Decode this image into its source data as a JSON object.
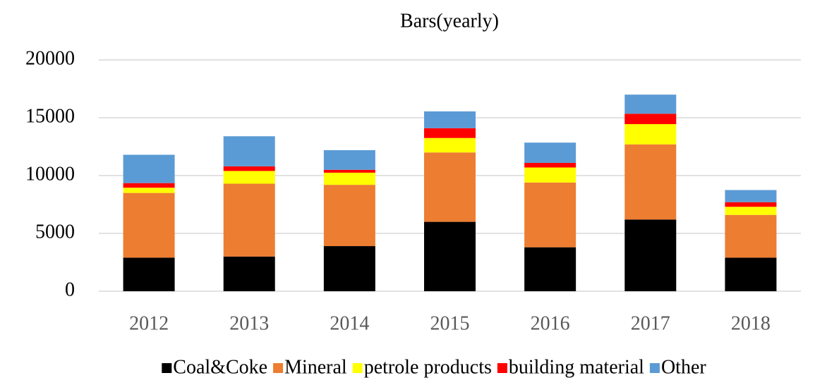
{
  "chart_data": {
    "type": "stacked_bar",
    "title": "Bars(yearly)",
    "categories": [
      "2012",
      "2013",
      "2014",
      "2015",
      "2016",
      "2017",
      "2018"
    ],
    "series": [
      {
        "name": "Coal&Coke",
        "color": "#000000",
        "values": [
          2900,
          3000,
          3900,
          6000,
          3800,
          6200,
          2900
        ]
      },
      {
        "name": "Mineral",
        "color": "#ed7d31",
        "values": [
          5600,
          6300,
          5300,
          6000,
          5600,
          6500,
          3700
        ]
      },
      {
        "name": "petrole products",
        "color": "#ffff00",
        "values": [
          450,
          1100,
          1050,
          1250,
          1300,
          1750,
          700
        ]
      },
      {
        "name": "building material",
        "color": "#ff0000",
        "values": [
          400,
          400,
          250,
          850,
          400,
          900,
          400
        ]
      },
      {
        "name": "Other",
        "color": "#5b9bd5",
        "values": [
          2450,
          2600,
          1700,
          1450,
          1750,
          1650,
          1050
        ]
      }
    ],
    "ylim": [
      0,
      20000
    ],
    "yticks": [
      0,
      5000,
      10000,
      15000,
      20000
    ],
    "grid": true,
    "legend": "bottom"
  }
}
